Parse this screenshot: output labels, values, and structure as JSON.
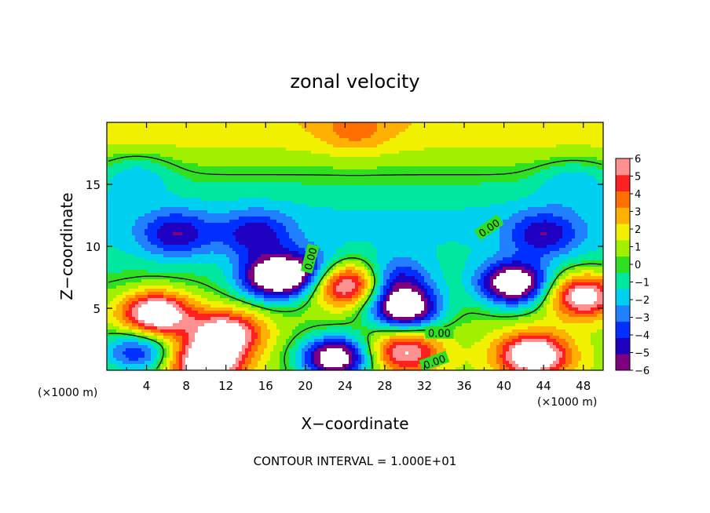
{
  "chart_data": {
    "type": "heatmap",
    "title": "zonal velocity",
    "xlabel": "X−coordinate",
    "ylabel": "Z−coordinate",
    "x_unit_label": "(×1000 m)",
    "y_unit_label": "(×1000 m)",
    "xlim": [
      0,
      50
    ],
    "ylim": [
      0,
      20
    ],
    "x_ticks": [
      4,
      8,
      12,
      16,
      20,
      24,
      28,
      32,
      36,
      40,
      44,
      48
    ],
    "y_ticks": [
      5,
      10,
      15
    ],
    "colorbar": {
      "min": -6,
      "max": 6,
      "ticks": [
        "6",
        "5",
        "4",
        "3",
        "2",
        "1",
        "0",
        "−1",
        "−2",
        "−3",
        "−4",
        "−5",
        "−6"
      ],
      "colors": [
        "#7f007f",
        "#2000c0",
        "#0030ff",
        "#2080ff",
        "#00d0f0",
        "#00e8a0",
        "#30e020",
        "#a0f000",
        "#f0f000",
        "#ffb000",
        "#ff7000",
        "#ff2020",
        "#ff9090"
      ],
      "out_of_range_color": "#ffffff"
    },
    "contour_labels": [
      "0.00",
      "0.00",
      "0.00",
      "0.00"
    ],
    "footer": "CONTOUR INTERVAL = 1.000E+01",
    "field_features": [
      {
        "x": 25,
        "z": 19.5,
        "value": 3.0,
        "note": "upper jet"
      },
      {
        "x": 7,
        "z": 11,
        "value": -4.5
      },
      {
        "x": 15,
        "z": 11,
        "value": -4.3
      },
      {
        "x": 44,
        "z": 11,
        "value": -4.5
      },
      {
        "x": 29,
        "z": 7.5,
        "value": -4.0
      },
      {
        "x": 21,
        "z": 8,
        "value": -4.0
      },
      {
        "x": 17,
        "z": 7.5,
        "value": -8.0
      },
      {
        "x": 24,
        "z": 7.0,
        "value": 8.0
      },
      {
        "x": 41,
        "z": 7.0,
        "value": -8.0
      },
      {
        "x": 30,
        "z": 5.0,
        "value": -8.0
      },
      {
        "x": 5,
        "z": 4.5,
        "value": 8.0
      },
      {
        "x": 12,
        "z": 3.0,
        "value": 7.0
      },
      {
        "x": 3,
        "z": 1.5,
        "value": -4.5
      },
      {
        "x": 10,
        "z": 0.5,
        "value": 8.0
      },
      {
        "x": 23,
        "z": 1.0,
        "value": -8.0
      },
      {
        "x": 30,
        "z": 1.5,
        "value": 6.0
      },
      {
        "x": 43,
        "z": 1.2,
        "value": 8.0
      },
      {
        "x": 48,
        "z": 6.0,
        "value": 7.0
      },
      {
        "x": 3,
        "z": 15.5,
        "value": -2.0
      },
      {
        "x": 47,
        "z": 15.0,
        "value": -2.0
      }
    ]
  }
}
